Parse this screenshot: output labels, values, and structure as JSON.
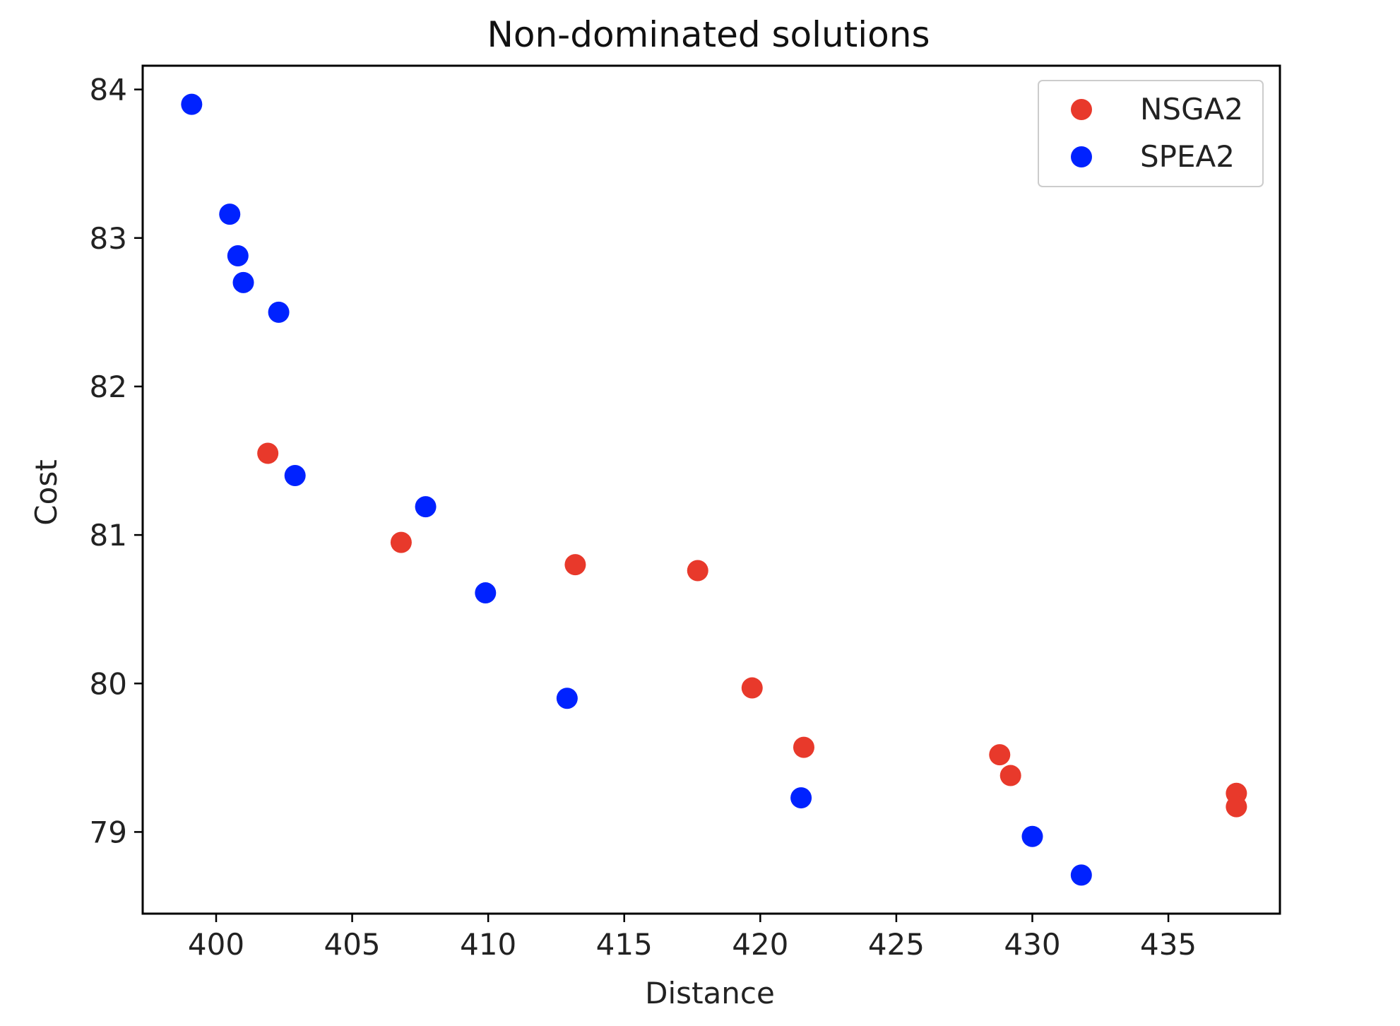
{
  "chart_data": {
    "type": "scatter",
    "title": "Non-dominated solutions",
    "xlabel": "Distance",
    "ylabel": "Cost",
    "xlim": [
      397.3,
      439.1
    ],
    "ylim": [
      78.45,
      84.16
    ],
    "xticks": [
      400,
      405,
      410,
      415,
      420,
      425,
      430,
      435
    ],
    "yticks": [
      79,
      80,
      81,
      82,
      83,
      84
    ],
    "grid": false,
    "legend_position": "top-right",
    "series": [
      {
        "name": "NSGA2",
        "color": "#e8392b",
        "points": [
          {
            "x": 401.9,
            "y": 81.55
          },
          {
            "x": 406.8,
            "y": 80.95
          },
          {
            "x": 413.2,
            "y": 80.8
          },
          {
            "x": 417.7,
            "y": 80.76
          },
          {
            "x": 419.7,
            "y": 79.97
          },
          {
            "x": 421.6,
            "y": 79.57
          },
          {
            "x": 428.8,
            "y": 79.52
          },
          {
            "x": 429.2,
            "y": 79.38
          },
          {
            "x": 437.5,
            "y": 79.26
          },
          {
            "x": 437.5,
            "y": 79.17
          }
        ]
      },
      {
        "name": "SPEA2",
        "color": "#0022ff",
        "points": [
          {
            "x": 399.1,
            "y": 83.9
          },
          {
            "x": 400.5,
            "y": 83.16
          },
          {
            "x": 400.8,
            "y": 82.88
          },
          {
            "x": 401.0,
            "y": 82.7
          },
          {
            "x": 402.3,
            "y": 82.5
          },
          {
            "x": 402.9,
            "y": 81.4
          },
          {
            "x": 407.7,
            "y": 81.19
          },
          {
            "x": 409.9,
            "y": 80.61
          },
          {
            "x": 412.9,
            "y": 79.9
          },
          {
            "x": 421.5,
            "y": 79.23
          },
          {
            "x": 430.0,
            "y": 78.97
          },
          {
            "x": 431.8,
            "y": 78.71
          }
        ]
      }
    ]
  }
}
